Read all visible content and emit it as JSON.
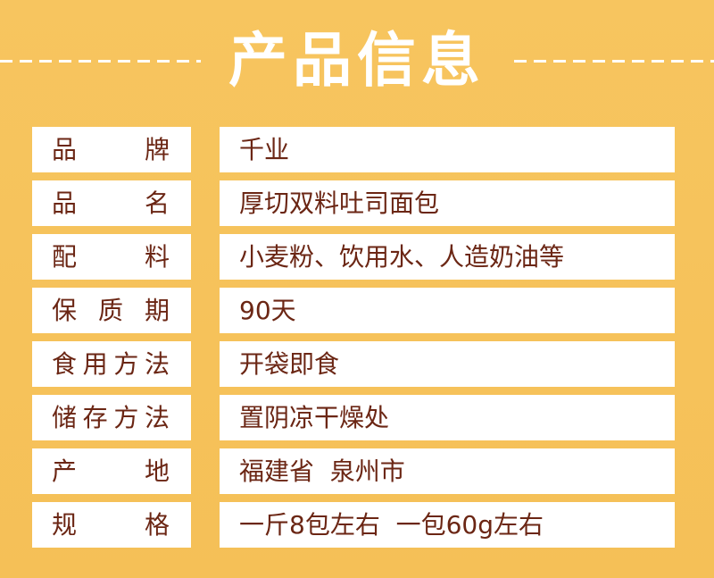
{
  "title": "产品信息",
  "colors": {
    "background": "#f6c25a",
    "text": "#6b2614",
    "cell": "#ffffff"
  },
  "rows": [
    {
      "label": "品牌",
      "value": "千业"
    },
    {
      "label": "品名",
      "value": "厚切双料吐司面包"
    },
    {
      "label": "配料",
      "value": "小麦粉、饮用水、人造奶油等"
    },
    {
      "label": "保质期",
      "value": "90天"
    },
    {
      "label": "食用方法",
      "value": "开袋即食"
    },
    {
      "label": "储存方法",
      "value": "置阴凉干燥处"
    },
    {
      "label": "产地",
      "value": "福建省  泉州市"
    },
    {
      "label": "规格",
      "value": "一斤8包左右  一包60g左右"
    }
  ]
}
